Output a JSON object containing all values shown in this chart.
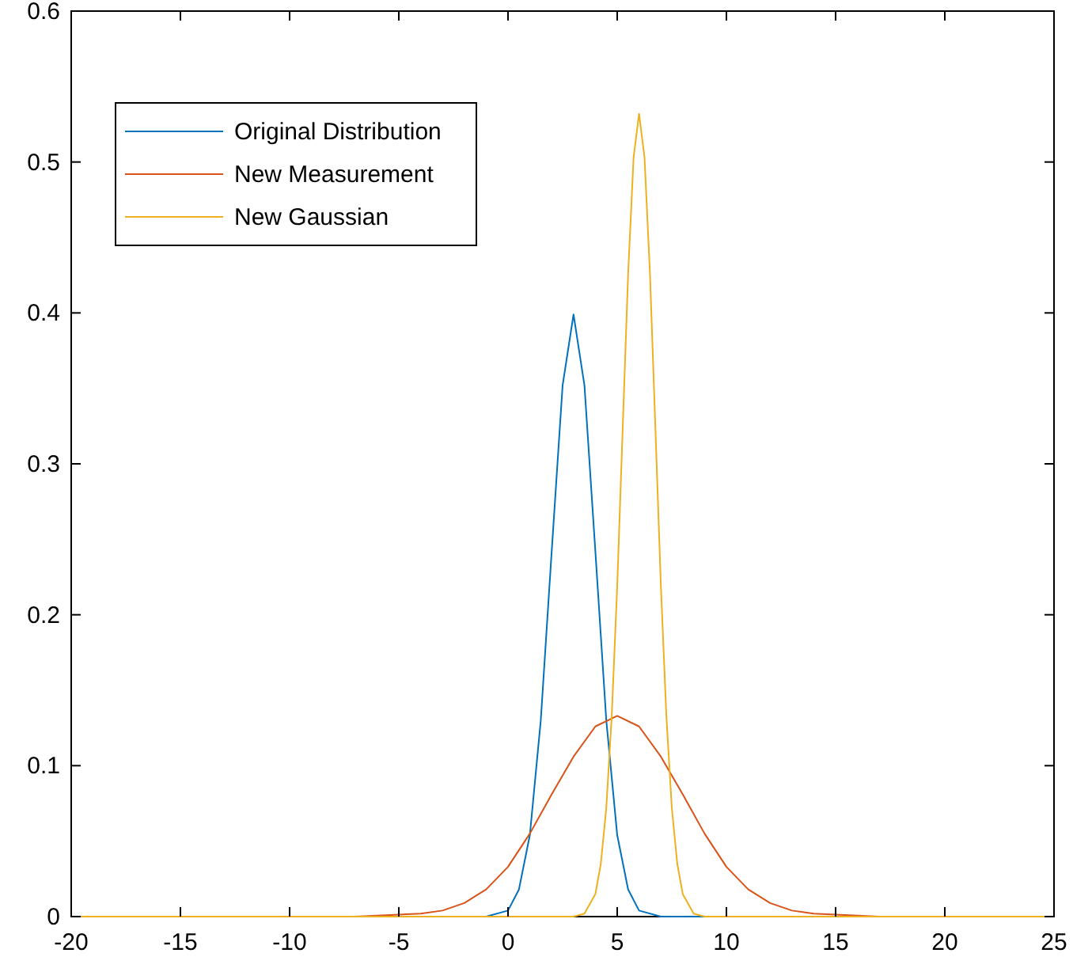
{
  "chart_data": {
    "type": "line",
    "xlim": [
      -20,
      25
    ],
    "ylim": [
      0,
      0.6
    ],
    "xticks": [
      -20,
      -15,
      -10,
      -5,
      0,
      5,
      10,
      15,
      20,
      25
    ],
    "yticks": [
      0,
      0.1,
      0.2,
      0.3,
      0.4,
      0.5,
      0.6
    ],
    "grid": false,
    "legend": "top left",
    "marker": "none",
    "line_style": "solid",
    "series": [
      {
        "name": "Original Distribution",
        "color": "#0072bd",
        "x": [
          -20,
          -1,
          0,
          0.5,
          1,
          1.5,
          2,
          2.5,
          3,
          3.5,
          4,
          4.5,
          5,
          5.5,
          6,
          7,
          25
        ],
        "values": [
          0,
          0,
          0.004,
          0.018,
          0.054,
          0.13,
          0.242,
          0.352,
          0.399,
          0.352,
          0.242,
          0.13,
          0.054,
          0.018,
          0.004,
          0,
          0
        ]
      },
      {
        "name": "New Measurement",
        "color": "#d95319",
        "x": [
          -20,
          -7,
          -4,
          -3,
          -2,
          -1,
          0,
          1,
          2,
          3,
          4,
          5,
          6,
          7,
          8,
          9,
          10,
          11,
          12,
          13,
          14,
          17,
          25
        ],
        "values": [
          0,
          0,
          0.002,
          0.004,
          0.009,
          0.018,
          0.033,
          0.055,
          0.081,
          0.106,
          0.126,
          0.133,
          0.126,
          0.106,
          0.081,
          0.055,
          0.033,
          0.018,
          0.009,
          0.004,
          0.002,
          0,
          0
        ]
      },
      {
        "name": "New Gaussian",
        "color": "#edb120",
        "x": [
          -20,
          3,
          3.5,
          4,
          4.25,
          4.5,
          4.75,
          5,
          5.25,
          5.5,
          5.75,
          6,
          6.25,
          6.5,
          6.75,
          7,
          7.25,
          7.5,
          7.75,
          8,
          8.5,
          9,
          25
        ],
        "values": [
          0,
          0,
          0.002,
          0.015,
          0.035,
          0.072,
          0.133,
          0.219,
          0.323,
          0.426,
          0.503,
          0.532,
          0.503,
          0.426,
          0.323,
          0.219,
          0.133,
          0.072,
          0.035,
          0.015,
          0.002,
          0,
          0
        ]
      }
    ]
  }
}
